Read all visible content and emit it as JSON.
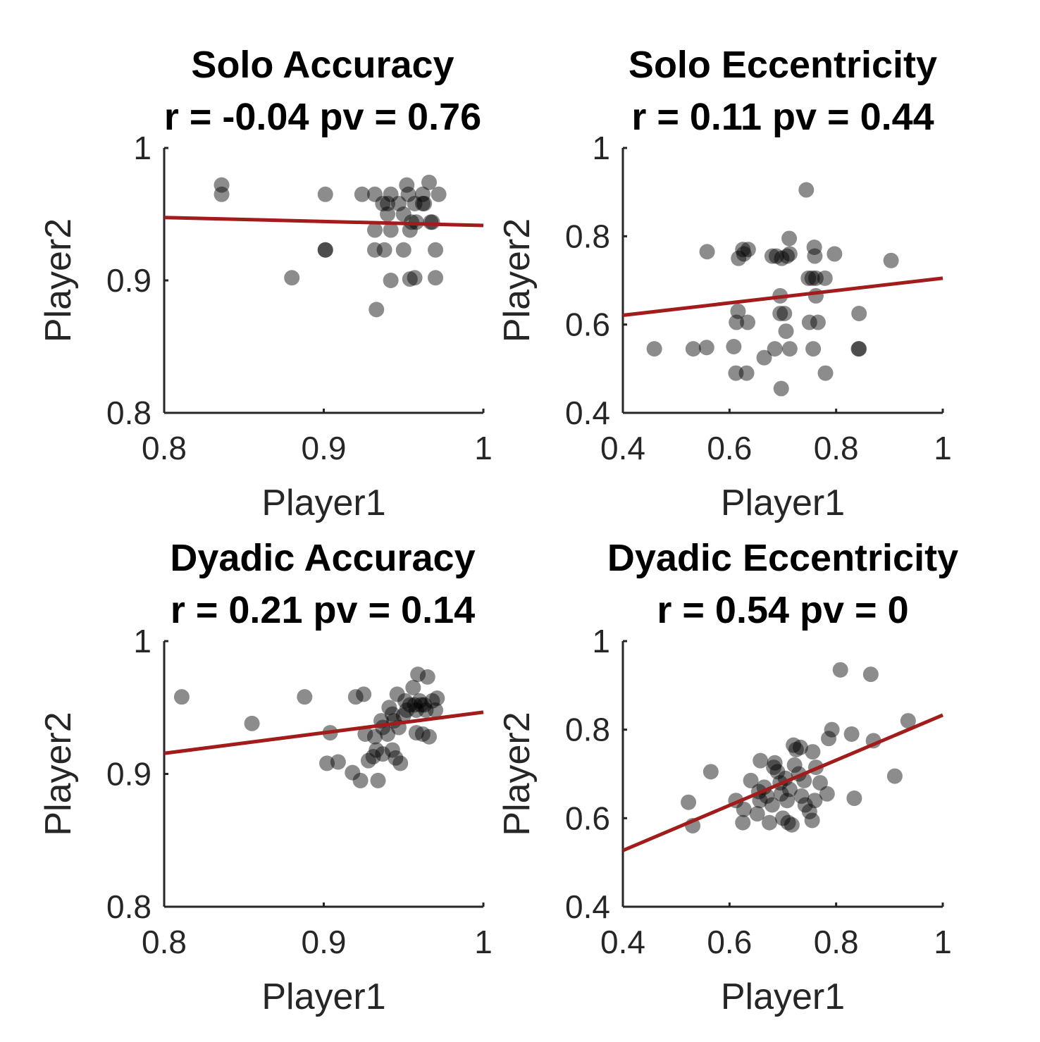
{
  "colors": {
    "points": "#000000",
    "fit_line": "#a31c1c",
    "axis": "#262626",
    "background": "#ffffff"
  },
  "chart_data": [
    {
      "type": "scatter",
      "title": "Solo Accuracy",
      "subtitle": "r = -0.04 pv = 0.76",
      "xlabel": "Player1",
      "ylabel": "Player2",
      "xlim": [
        0.8,
        1
      ],
      "ylim": [
        0.8,
        1
      ],
      "xticks": [
        "0.8",
        "0.9",
        "1"
      ],
      "yticks": [
        "0.8",
        "0.9",
        "1"
      ],
      "fit_line": {
        "x": [
          0.8,
          1
        ],
        "y": [
          0.9475,
          0.9415
        ]
      },
      "points": [
        [
          0.836,
          0.972
        ],
        [
          0.836,
          0.965
        ],
        [
          0.88,
          0.902
        ],
        [
          0.901,
          0.923
        ],
        [
          0.901,
          0.923
        ],
        [
          0.901,
          0.965
        ],
        [
          0.924,
          0.965
        ],
        [
          0.932,
          0.965
        ],
        [
          0.932,
          0.938
        ],
        [
          0.932,
          0.923
        ],
        [
          0.933,
          0.878
        ],
        [
          0.937,
          0.958
        ],
        [
          0.938,
          0.923
        ],
        [
          0.94,
          0.958
        ],
        [
          0.94,
          0.95
        ],
        [
          0.942,
          0.965
        ],
        [
          0.942,
          0.938
        ],
        [
          0.942,
          0.9
        ],
        [
          0.947,
          0.958
        ],
        [
          0.95,
          0.923
        ],
        [
          0.95,
          0.95
        ],
        [
          0.952,
          0.972
        ],
        [
          0.953,
          0.965
        ],
        [
          0.954,
          0.938
        ],
        [
          0.954,
          0.901
        ],
        [
          0.957,
          0.958
        ],
        [
          0.957,
          0.902
        ],
        [
          0.958,
          0.944
        ],
        [
          0.962,
          0.958
        ],
        [
          0.963,
          0.958
        ],
        [
          0.966,
          0.974
        ],
        [
          0.967,
          0.944
        ],
        [
          0.968,
          0.944
        ],
        [
          0.97,
          0.923
        ],
        [
          0.97,
          0.902
        ],
        [
          0.972,
          0.965
        ],
        [
          0.962,
          0.965
        ],
        [
          0.955,
          0.944
        ]
      ]
    },
    {
      "type": "scatter",
      "title": "Solo Eccentricity",
      "subtitle": "r = 0.11 pv = 0.44",
      "xlabel": "Player1",
      "ylabel": "Player2",
      "xlim": [
        0.4,
        1
      ],
      "ylim": [
        0.4,
        1
      ],
      "xticks": [
        "0.4",
        "0.6",
        "0.8",
        "1"
      ],
      "yticks": [
        "0.4",
        "0.6",
        "0.8",
        "1"
      ],
      "fit_line": {
        "x": [
          0.4,
          1
        ],
        "y": [
          0.621,
          0.705
        ]
      },
      "points": [
        [
          0.459,
          0.545
        ],
        [
          0.532,
          0.545
        ],
        [
          0.557,
          0.548
        ],
        [
          0.558,
          0.765
        ],
        [
          0.608,
          0.55
        ],
        [
          0.612,
          0.49
        ],
        [
          0.613,
          0.605
        ],
        [
          0.616,
          0.63
        ],
        [
          0.617,
          0.75
        ],
        [
          0.625,
          0.77
        ],
        [
          0.627,
          0.76
        ],
        [
          0.632,
          0.49
        ],
        [
          0.634,
          0.605
        ],
        [
          0.635,
          0.77
        ],
        [
          0.665,
          0.525
        ],
        [
          0.68,
          0.755
        ],
        [
          0.685,
          0.545
        ],
        [
          0.688,
          0.755
        ],
        [
          0.695,
          0.665
        ],
        [
          0.695,
          0.625
        ],
        [
          0.697,
          0.455
        ],
        [
          0.698,
          0.75
        ],
        [
          0.703,
          0.625
        ],
        [
          0.706,
          0.585
        ],
        [
          0.708,
          0.755
        ],
        [
          0.712,
          0.795
        ],
        [
          0.713,
          0.545
        ],
        [
          0.713,
          0.76
        ],
        [
          0.744,
          0.905
        ],
        [
          0.748,
          0.705
        ],
        [
          0.75,
          0.605
        ],
        [
          0.755,
          0.705
        ],
        [
          0.757,
          0.545
        ],
        [
          0.759,
          0.775
        ],
        [
          0.76,
          0.755
        ],
        [
          0.762,
          0.705
        ],
        [
          0.762,
          0.665
        ],
        [
          0.766,
          0.605
        ],
        [
          0.779,
          0.705
        ],
        [
          0.78,
          0.49
        ],
        [
          0.797,
          0.76
        ],
        [
          0.842,
          0.545
        ],
        [
          0.843,
          0.545
        ],
        [
          0.843,
          0.625
        ],
        [
          0.903,
          0.745
        ]
      ]
    },
    {
      "type": "scatter",
      "title": "Dyadic Accuracy",
      "subtitle": "r = 0.21 pv = 0.14",
      "xlabel": "Player1",
      "ylabel": "Player2",
      "xlim": [
        0.8,
        1
      ],
      "ylim": [
        0.8,
        1
      ],
      "xticks": [
        "0.8",
        "0.9",
        "1"
      ],
      "yticks": [
        "0.8",
        "0.9",
        "1"
      ],
      "fit_line": {
        "x": [
          0.8,
          1
        ],
        "y": [
          0.9155,
          0.9465
        ]
      },
      "points": [
        [
          0.811,
          0.958
        ],
        [
          0.855,
          0.938
        ],
        [
          0.888,
          0.958
        ],
        [
          0.902,
          0.908
        ],
        [
          0.904,
          0.931
        ],
        [
          0.909,
          0.909
        ],
        [
          0.918,
          0.901
        ],
        [
          0.92,
          0.958
        ],
        [
          0.923,
          0.895
        ],
        [
          0.925,
          0.96
        ],
        [
          0.926,
          0.93
        ],
        [
          0.928,
          0.91
        ],
        [
          0.931,
          0.913
        ],
        [
          0.932,
          0.928
        ],
        [
          0.933,
          0.918
        ],
        [
          0.934,
          0.895
        ],
        [
          0.936,
          0.94
        ],
        [
          0.937,
          0.915
        ],
        [
          0.937,
          0.935
        ],
        [
          0.94,
          0.93
        ],
        [
          0.941,
          0.95
        ],
        [
          0.943,
          0.945
        ],
        [
          0.943,
          0.918
        ],
        [
          0.944,
          0.94
        ],
        [
          0.945,
          0.912
        ],
        [
          0.946,
          0.96
        ],
        [
          0.947,
          0.935
        ],
        [
          0.948,
          0.908
        ],
        [
          0.95,
          0.944
        ],
        [
          0.951,
          0.955
        ],
        [
          0.952,
          0.948
        ],
        [
          0.954,
          0.952
        ],
        [
          0.956,
          0.965
        ],
        [
          0.957,
          0.952
        ],
        [
          0.958,
          0.948
        ],
        [
          0.958,
          0.931
        ],
        [
          0.959,
          0.975
        ],
        [
          0.96,
          0.955
        ],
        [
          0.961,
          0.952
        ],
        [
          0.962,
          0.93
        ],
        [
          0.963,
          0.952
        ],
        [
          0.964,
          0.948
        ],
        [
          0.965,
          0.973
        ],
        [
          0.966,
          0.928
        ],
        [
          0.968,
          0.955
        ],
        [
          0.97,
          0.948
        ],
        [
          0.971,
          0.957
        ]
      ]
    },
    {
      "type": "scatter",
      "title": "Dyadic Eccentricity",
      "subtitle": "r = 0.54 pv = 0",
      "xlabel": "Player1",
      "ylabel": "Player2",
      "xlim": [
        0.4,
        1
      ],
      "ylim": [
        0.4,
        1
      ],
      "xticks": [
        "0.4",
        "0.6",
        "0.8",
        "1"
      ],
      "yticks": [
        "0.4",
        "0.6",
        "0.8",
        "1"
      ],
      "fit_line": {
        "x": [
          0.4,
          1
        ],
        "y": [
          0.527,
          0.833
        ]
      },
      "points": [
        [
          0.523,
          0.636
        ],
        [
          0.531,
          0.583
        ],
        [
          0.565,
          0.705
        ],
        [
          0.612,
          0.64
        ],
        [
          0.625,
          0.59
        ],
        [
          0.627,
          0.62
        ],
        [
          0.64,
          0.685
        ],
        [
          0.652,
          0.61
        ],
        [
          0.655,
          0.66
        ],
        [
          0.657,
          0.64
        ],
        [
          0.658,
          0.73
        ],
        [
          0.665,
          0.67
        ],
        [
          0.67,
          0.65
        ],
        [
          0.675,
          0.59
        ],
        [
          0.68,
          0.63
        ],
        [
          0.683,
          0.715
        ],
        [
          0.685,
          0.725
        ],
        [
          0.69,
          0.705
        ],
        [
          0.695,
          0.68
        ],
        [
          0.697,
          0.655
        ],
        [
          0.7,
          0.6
        ],
        [
          0.705,
          0.69
        ],
        [
          0.708,
          0.64
        ],
        [
          0.71,
          0.59
        ],
        [
          0.713,
          0.665
        ],
        [
          0.717,
          0.585
        ],
        [
          0.72,
          0.765
        ],
        [
          0.722,
          0.72
        ],
        [
          0.725,
          0.755
        ],
        [
          0.73,
          0.7
        ],
        [
          0.733,
          0.76
        ],
        [
          0.735,
          0.65
        ],
        [
          0.74,
          0.685
        ],
        [
          0.742,
          0.63
        ],
        [
          0.75,
          0.615
        ],
        [
          0.755,
          0.595
        ],
        [
          0.756,
          0.75
        ],
        [
          0.76,
          0.64
        ],
        [
          0.762,
          0.715
        ],
        [
          0.77,
          0.68
        ],
        [
          0.783,
          0.655
        ],
        [
          0.786,
          0.78
        ],
        [
          0.792,
          0.8
        ],
        [
          0.808,
          0.935
        ],
        [
          0.829,
          0.79
        ],
        [
          0.834,
          0.645
        ],
        [
          0.865,
          0.925
        ],
        [
          0.87,
          0.775
        ],
        [
          0.91,
          0.695
        ],
        [
          0.935,
          0.82
        ]
      ]
    }
  ]
}
